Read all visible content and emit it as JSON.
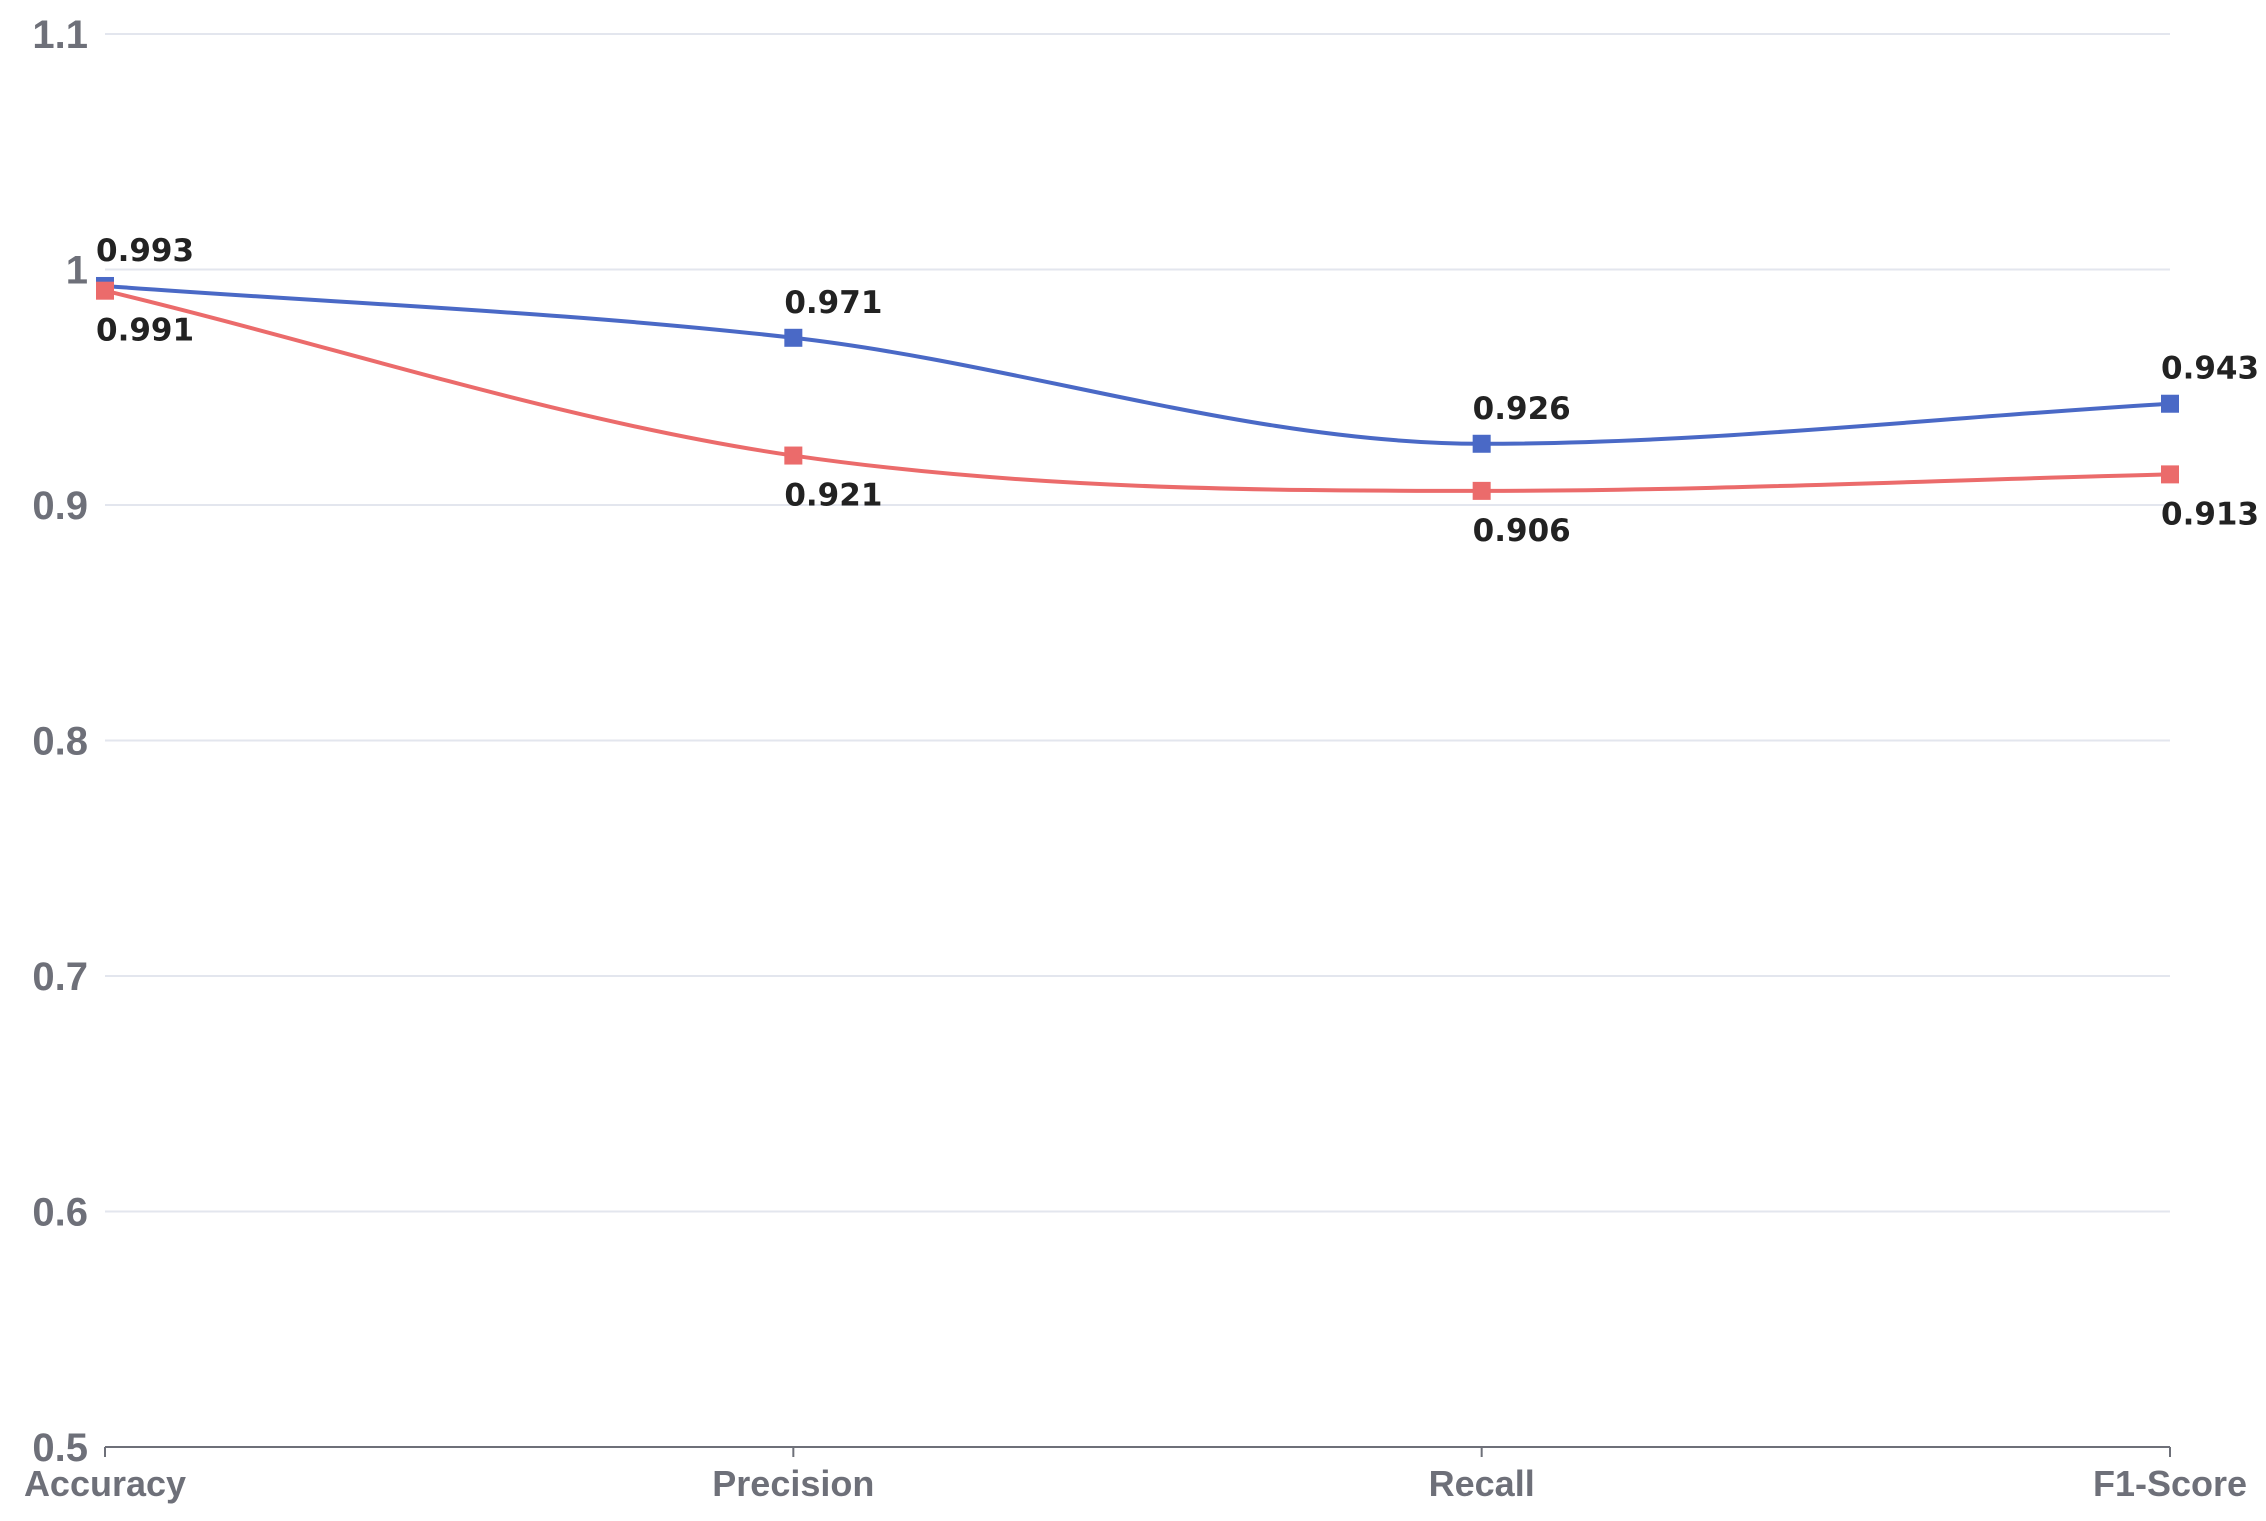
{
  "chart_data": {
    "type": "line",
    "categories": [
      "Accuracy",
      "Precision",
      "Recall",
      "F1-Score"
    ],
    "series": [
      {
        "values": [
          0.993,
          0.971,
          0.926,
          0.943
        ],
        "color": "#4a69c6",
        "label_position": "above"
      },
      {
        "values": [
          0.991,
          0.921,
          0.906,
          0.913
        ],
        "color": "#eb6b6b",
        "label_position": "below"
      }
    ],
    "ylim": [
      0.5,
      1.1
    ],
    "yticks": [
      0.5,
      0.6,
      0.7,
      0.8,
      0.9,
      1,
      1.1
    ],
    "ytick_labels": [
      "0.5",
      "0.6",
      "0.7",
      "0.8",
      "0.9",
      "1",
      "1.1"
    ],
    "xlabel": "",
    "ylabel": "",
    "title": "",
    "grid": true,
    "smooth": true,
    "marker": "square"
  }
}
